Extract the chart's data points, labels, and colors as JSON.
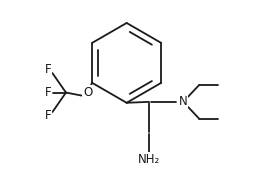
{
  "bg_color": "#ffffff",
  "line_color": "#1a1a1a",
  "text_color": "#1a1a1a",
  "lw": 1.3,
  "fontsize": 8.5,
  "figsize": [
    2.7,
    1.87
  ],
  "dpi": 100,
  "xlim": [
    0.0,
    1.0
  ],
  "ylim": [
    0.0,
    1.0
  ]
}
